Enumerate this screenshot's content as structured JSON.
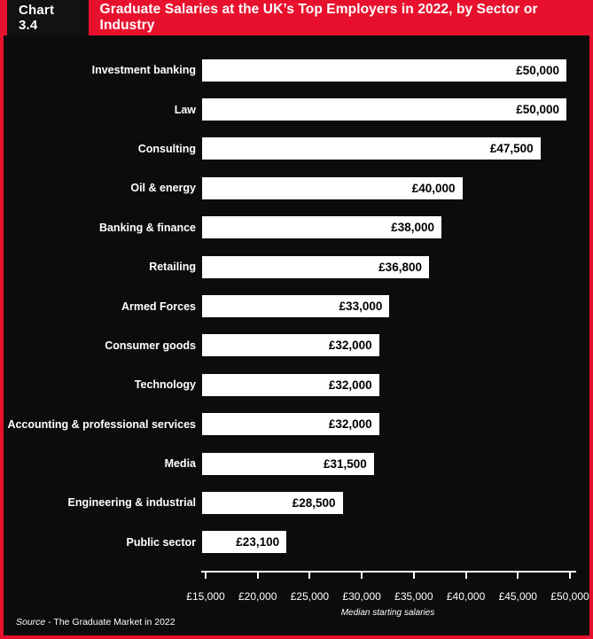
{
  "header": {
    "chart_label": "Chart 3.4",
    "title": "Graduate Salaries at the UK’s Top Employers in 2022, by Sector or Industry"
  },
  "chart_data": {
    "type": "bar",
    "orientation": "horizontal",
    "title": "Graduate Salaries at the UK’s Top Employers in 2022, by Sector or Industry",
    "categories": [
      "Investment banking",
      "Law",
      "Consulting",
      "Oil & energy",
      "Banking & finance",
      "Retailing",
      "Armed Forces",
      "Consumer goods",
      "Technology",
      "Accounting & professional services",
      "Media",
      "Engineering & industrial",
      "Public sector"
    ],
    "values": [
      50000,
      50000,
      47500,
      40000,
      38000,
      36800,
      33000,
      32000,
      32000,
      32000,
      31500,
      28500,
      23100
    ],
    "value_labels": [
      "£50,000",
      "£50,000",
      "£47,500",
      "£40,000",
      "£38,000",
      "£36,800",
      "£33,000",
      "£32,000",
      "£32,000",
      "£32,000",
      "£31,500",
      "£28,500",
      "£23,100"
    ],
    "xlabel": "Median starting salaries",
    "x_ticks": [
      "£15,000",
      "£20,000",
      "£25,000",
      "£30,000",
      "£35,000",
      "£40,000",
      "£45,000",
      "£50,000"
    ],
    "xlim": [
      15000,
      50000
    ],
    "bar_color": "#ffffff",
    "background": "#0c0c0c",
    "accent": "#e8112d",
    "grid": false,
    "legend": false
  },
  "footer": {
    "source_prefix": "Source",
    "source_rest": " - The Graduate Market in 2022"
  }
}
